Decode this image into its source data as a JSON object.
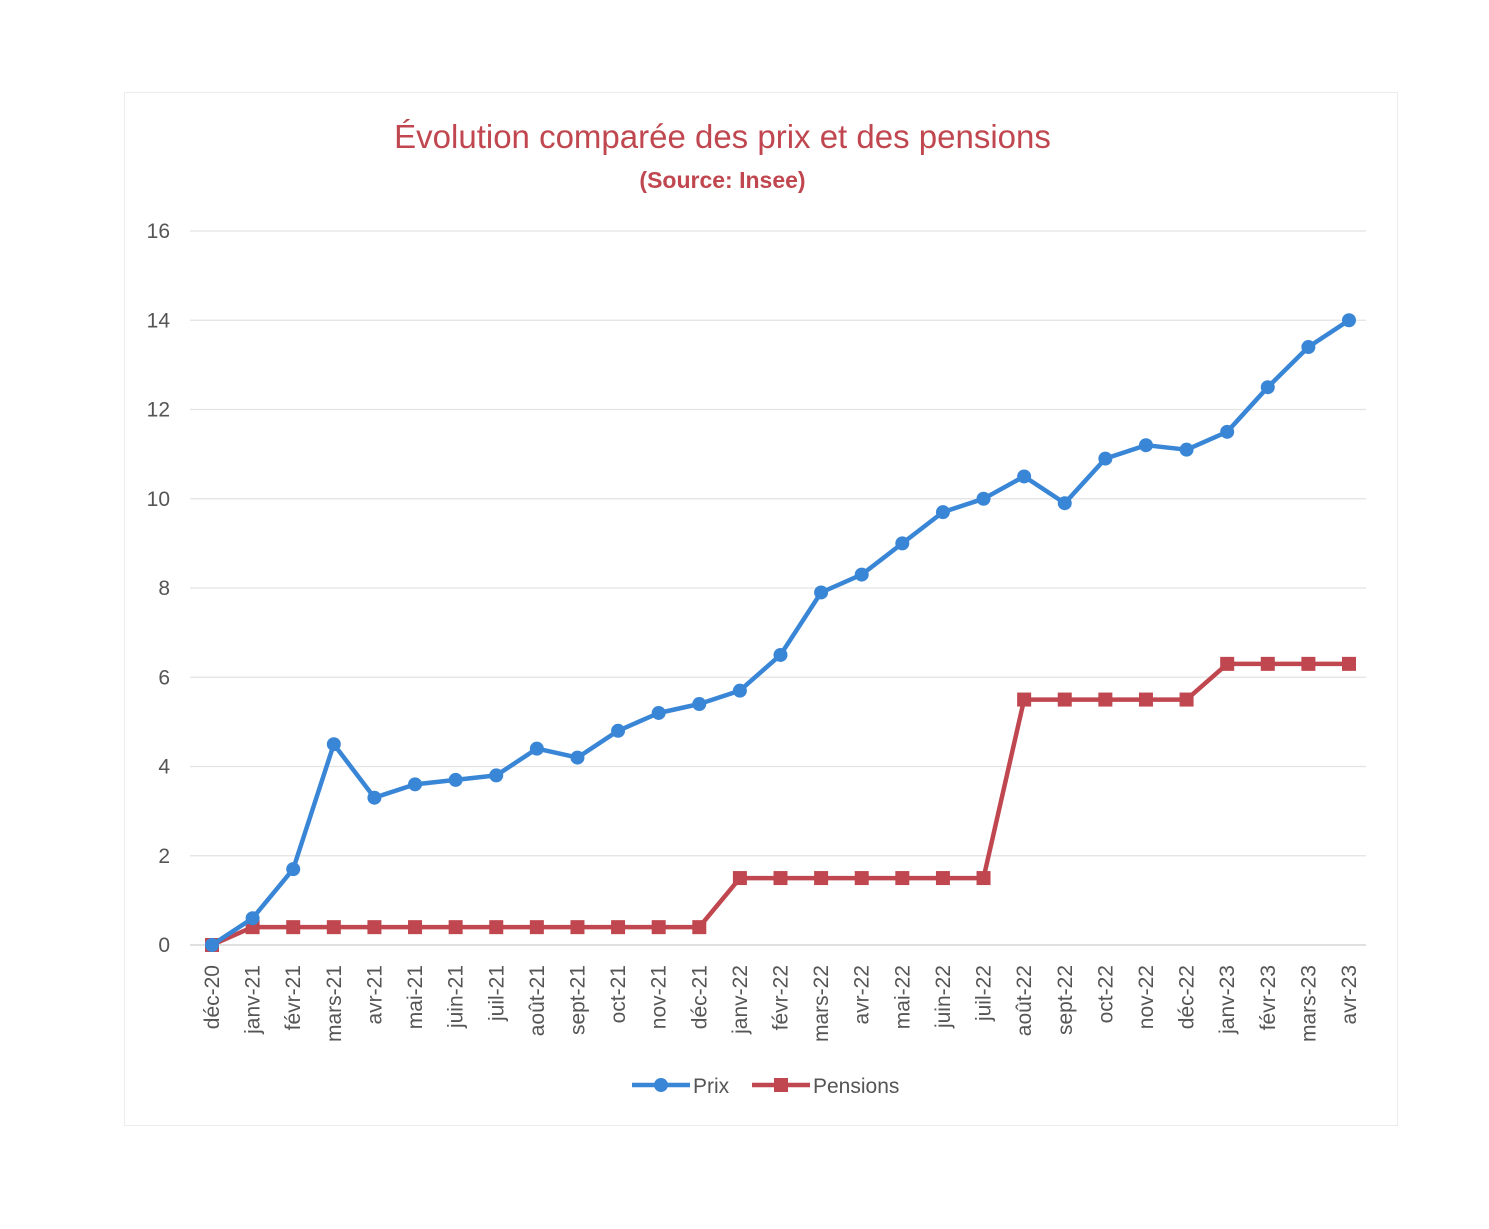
{
  "chart_data": {
    "type": "line",
    "title": "Évolution comparée des prix et des pensions",
    "subtitle": "(Source: Insee)",
    "xlabel": "",
    "ylabel": "",
    "ylim": [
      0,
      16
    ],
    "yticks": [
      0,
      2,
      4,
      6,
      8,
      10,
      12,
      14,
      16
    ],
    "grid": true,
    "legend_position": "bottom",
    "categories": [
      "déc-20",
      "janv-21",
      "févr-21",
      "mars-21",
      "avr-21",
      "mai-21",
      "juin-21",
      "juil-21",
      "août-21",
      "sept-21",
      "oct-21",
      "nov-21",
      "déc-21",
      "janv-22",
      "févr-22",
      "mars-22",
      "avr-22",
      "mai-22",
      "juin-22",
      "juil-22",
      "août-22",
      "sept-22",
      "oct-22",
      "nov-22",
      "déc-22",
      "janv-23",
      "févr-23",
      "mars-23",
      "avr-23"
    ],
    "series": [
      {
        "name": "Prix",
        "color": "#3a86d6",
        "marker": "circle",
        "values": [
          0,
          0.6,
          1.7,
          4.5,
          3.3,
          3.6,
          3.7,
          3.8,
          4.4,
          4.2,
          4.8,
          5.2,
          5.4,
          5.7,
          6.5,
          7.9,
          8.3,
          9.0,
          9.7,
          10.0,
          10.5,
          9.9,
          10.9,
          11.2,
          11.1,
          11.5,
          12.5,
          13.4,
          14.0
        ]
      },
      {
        "name": "Pensions",
        "color": "#c0474f",
        "marker": "square",
        "values": [
          0,
          0.4,
          0.4,
          0.4,
          0.4,
          0.4,
          0.4,
          0.4,
          0.4,
          0.4,
          0.4,
          0.4,
          0.4,
          1.5,
          1.5,
          1.5,
          1.5,
          1.5,
          1.5,
          1.5,
          5.5,
          5.5,
          5.5,
          5.5,
          5.5,
          6.3,
          6.3,
          6.3,
          6.3
        ]
      }
    ]
  }
}
